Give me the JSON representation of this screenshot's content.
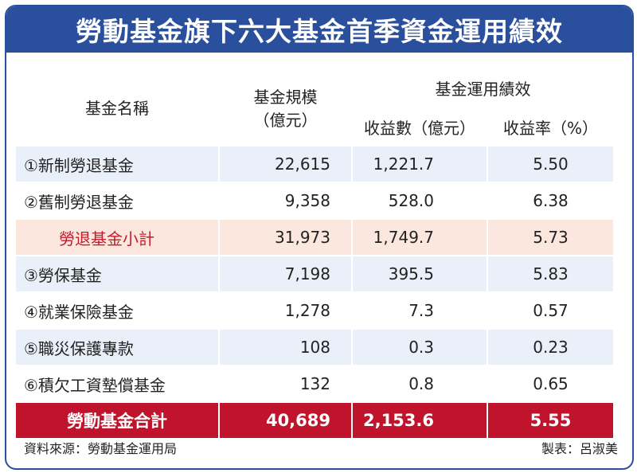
{
  "title": "勞動基金旗下六大基金首季資金運用績效",
  "header": {
    "col_name": "基金名稱",
    "col_size": "基金規模",
    "col_size_unit": "（億元）",
    "col_perf": "基金運用績效",
    "col_income": "收益數（億元）",
    "col_rate": "收益率（%）"
  },
  "rows": [
    {
      "name": "①新制勞退基金",
      "size": "22,615",
      "income": "1,221.7",
      "rate": "5.50"
    },
    {
      "name": "②舊制勞退基金",
      "size": "9,358",
      "income": "528.0",
      "rate": "6.38"
    },
    {
      "name": "勞退基金小計",
      "size": "31,973",
      "income": "1,749.7",
      "rate": "5.73"
    },
    {
      "name": "③勞保基金",
      "size": "7,198",
      "income": "395.5",
      "rate": "5.83"
    },
    {
      "name": "④就業保險基金",
      "size": "1,278",
      "income": "7.3",
      "rate": "0.57"
    },
    {
      "name": "⑤職災保護專款",
      "size": "108",
      "income": "0.3",
      "rate": "0.23"
    },
    {
      "name": "⑥積欠工資墊償基金",
      "size": "132",
      "income": "0.8",
      "rate": "0.65"
    },
    {
      "name": "勞動基金合計",
      "size": "40,689",
      "income": "2,153.6",
      "rate": "5.55"
    }
  ],
  "footer": {
    "source": "資料來源：勞動基金運用局",
    "maker": "製表：呂淑美"
  },
  "colors": {
    "title_bg": "#2a4f9c",
    "row_tint": "#eaf0f9",
    "subtotal_bg": "#fbe7dd",
    "subtotal_text": "#c11b2d",
    "total_bg": "#c0142d"
  },
  "chart_data": {
    "type": "table",
    "columns": [
      "基金名稱",
      "基金規模（億元）",
      "收益數（億元）",
      "收益率（%）"
    ],
    "rows": [
      [
        "①新制勞退基金",
        22615,
        1221.7,
        5.5
      ],
      [
        "②舊制勞退基金",
        9358,
        528.0,
        6.38
      ],
      [
        "勞退基金小計",
        31973,
        1749.7,
        5.73
      ],
      [
        "③勞保基金",
        7198,
        395.5,
        5.83
      ],
      [
        "④就業保險基金",
        1278,
        7.3,
        0.57
      ],
      [
        "⑤職災保護專款",
        108,
        0.3,
        0.23
      ],
      [
        "⑥積欠工資墊償基金",
        132,
        0.8,
        0.65
      ],
      [
        "勞動基金合計",
        40689,
        2153.6,
        5.55
      ]
    ]
  }
}
